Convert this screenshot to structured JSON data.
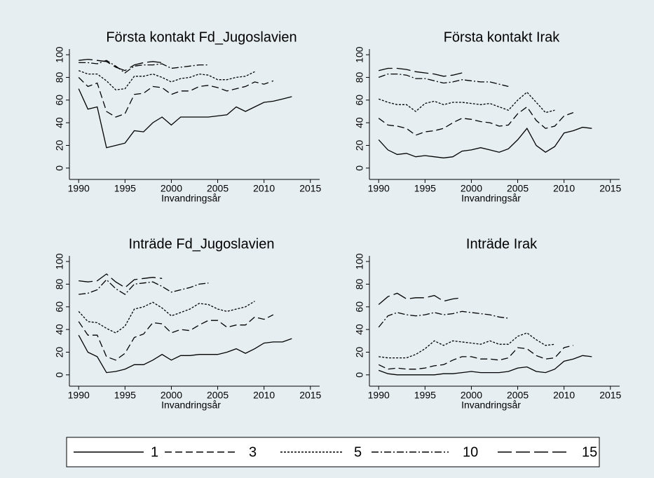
{
  "chart_data": [
    {
      "type": "line",
      "title": "Första kontakt Fd_Jugoslavien",
      "xlabel": "Invandringsår",
      "x": [
        1990,
        1991,
        1992,
        1993,
        1994,
        1995,
        1996,
        1997,
        1998,
        1999,
        2000,
        2001,
        2002,
        2003,
        2004,
        2005,
        2006,
        2007,
        2008,
        2009,
        2010,
        2011,
        2012,
        2013
      ],
      "xlim": [
        1989,
        2016
      ],
      "xticks": [
        1990,
        1995,
        2000,
        2005,
        2010,
        2015
      ],
      "ylim": [
        -10,
        105
      ],
      "yticks": [
        0,
        20,
        40,
        60,
        80,
        100
      ],
      "series": [
        {
          "name": "1",
          "color": "#000000",
          "values": [
            70,
            52,
            54,
            18,
            20,
            22,
            33,
            32,
            40,
            45,
            38,
            45,
            45,
            45,
            45,
            46,
            47,
            54,
            50,
            54,
            58,
            59,
            61,
            63
          ]
        },
        {
          "name": "3",
          "color": "#000000",
          "values": [
            80,
            72,
            75,
            50,
            45,
            48,
            65,
            66,
            72,
            71,
            65,
            68,
            68,
            72,
            73,
            71,
            68,
            70,
            72,
            76,
            74,
            77,
            null,
            null
          ]
        },
        {
          "name": "5",
          "color": "#000000",
          "values": [
            86,
            83,
            83,
            77,
            69,
            70,
            81,
            81,
            83,
            80,
            76,
            79,
            80,
            83,
            82,
            78,
            78,
            80,
            81,
            85,
            null,
            null,
            null,
            null
          ]
        },
        {
          "name": "10",
          "color": "#000000",
          "values": [
            93,
            93,
            92,
            95,
            90,
            84,
            90,
            91,
            91,
            92,
            88,
            89,
            90,
            91,
            91,
            null,
            null,
            null,
            null,
            null,
            null,
            null,
            null,
            null
          ]
        },
        {
          "name": "15",
          "color": "#000000",
          "values": [
            95,
            96,
            95,
            94,
            89,
            86,
            91,
            93,
            94,
            93,
            null,
            null,
            null,
            null,
            null,
            null,
            null,
            null,
            null,
            null,
            null,
            null,
            null,
            null
          ]
        }
      ]
    },
    {
      "type": "line",
      "title": "Första kontakt Irak",
      "xlabel": "Invandringsår",
      "x": [
        1990,
        1991,
        1992,
        1993,
        1994,
        1995,
        1996,
        1997,
        1998,
        1999,
        2000,
        2001,
        2002,
        2003,
        2004,
        2005,
        2006,
        2007,
        2008,
        2009,
        2010,
        2011,
        2012,
        2013
      ],
      "xlim": [
        1989,
        2016
      ],
      "xticks": [
        1990,
        1995,
        2000,
        2005,
        2010,
        2015
      ],
      "ylim": [
        -10,
        105
      ],
      "yticks": [
        0,
        20,
        40,
        60,
        80,
        100
      ],
      "series": [
        {
          "name": "1",
          "color": "#000000",
          "values": [
            25,
            16,
            12,
            13,
            10,
            11,
            10,
            9,
            10,
            15,
            16,
            18,
            16,
            14,
            17,
            25,
            35,
            20,
            14,
            19,
            31,
            33,
            36,
            35
          ]
        },
        {
          "name": "3",
          "color": "#000000",
          "values": [
            44,
            38,
            37,
            35,
            29,
            32,
            33,
            35,
            40,
            44,
            43,
            41,
            40,
            37,
            38,
            48,
            54,
            42,
            35,
            37,
            46,
            49,
            null,
            null
          ]
        },
        {
          "name": "5",
          "color": "#000000",
          "values": [
            61,
            58,
            56,
            56,
            50,
            57,
            59,
            56,
            58,
            58,
            57,
            56,
            57,
            54,
            51,
            60,
            67,
            58,
            49,
            51,
            null,
            null,
            null,
            null
          ]
        },
        {
          "name": "10",
          "color": "#000000",
          "values": [
            80,
            83,
            83,
            82,
            79,
            79,
            77,
            75,
            76,
            78,
            77,
            76,
            76,
            74,
            72,
            null,
            null,
            null,
            null,
            null,
            null,
            null,
            null,
            null
          ]
        },
        {
          "name": "15",
          "color": "#000000",
          "values": [
            86,
            88,
            88,
            87,
            85,
            84,
            83,
            81,
            82,
            84,
            null,
            null,
            null,
            null,
            null,
            null,
            null,
            null,
            null,
            null,
            null,
            null,
            null,
            null
          ]
        }
      ]
    },
    {
      "type": "line",
      "title": "Inträde Fd_Jugoslavien",
      "xlabel": "Invandringsår",
      "x": [
        1990,
        1991,
        1992,
        1993,
        1994,
        1995,
        1996,
        1997,
        1998,
        1999,
        2000,
        2001,
        2002,
        2003,
        2004,
        2005,
        2006,
        2007,
        2008,
        2009,
        2010,
        2011,
        2012,
        2013
      ],
      "xlim": [
        1989,
        2016
      ],
      "xticks": [
        1990,
        1995,
        2000,
        2005,
        2010,
        2015
      ],
      "ylim": [
        -10,
        105
      ],
      "yticks": [
        0,
        20,
        40,
        60,
        80,
        100
      ],
      "series": [
        {
          "name": "1",
          "color": "#000000",
          "values": [
            35,
            20,
            16,
            2,
            3,
            5,
            9,
            9,
            13,
            18,
            13,
            17,
            17,
            18,
            18,
            18,
            20,
            23,
            19,
            23,
            28,
            29,
            29,
            32
          ]
        },
        {
          "name": "3",
          "color": "#000000",
          "values": [
            47,
            35,
            35,
            16,
            13,
            19,
            33,
            36,
            46,
            45,
            37,
            40,
            39,
            44,
            48,
            48,
            42,
            44,
            44,
            51,
            49,
            53,
            null,
            null
          ]
        },
        {
          "name": "5",
          "color": "#000000",
          "values": [
            56,
            47,
            46,
            41,
            37,
            43,
            58,
            60,
            64,
            59,
            52,
            55,
            58,
            63,
            62,
            58,
            56,
            58,
            60,
            65,
            null,
            null,
            null,
            null
          ]
        },
        {
          "name": "10",
          "color": "#000000",
          "values": [
            71,
            72,
            75,
            84,
            76,
            71,
            80,
            81,
            82,
            78,
            73,
            75,
            77,
            80,
            81,
            null,
            null,
            null,
            null,
            null,
            null,
            null,
            null,
            null
          ]
        },
        {
          "name": "15",
          "color": "#000000",
          "values": [
            83,
            82,
            83,
            89,
            82,
            77,
            84,
            85,
            86,
            85,
            null,
            null,
            null,
            null,
            null,
            null,
            null,
            null,
            null,
            null,
            null,
            null,
            null,
            null
          ]
        }
      ]
    },
    {
      "type": "line",
      "title": "Inträde Irak",
      "xlabel": "Invandringsår",
      "x": [
        1990,
        1991,
        1992,
        1993,
        1994,
        1995,
        1996,
        1997,
        1998,
        1999,
        2000,
        2001,
        2002,
        2003,
        2004,
        2005,
        2006,
        2007,
        2008,
        2009,
        2010,
        2011,
        2012,
        2013
      ],
      "xlim": [
        1989,
        2016
      ],
      "xticks": [
        1990,
        1995,
        2000,
        2005,
        2010,
        2015
      ],
      "ylim": [
        -10,
        105
      ],
      "yticks": [
        0,
        20,
        40,
        60,
        80,
        100
      ],
      "series": [
        {
          "name": "1",
          "color": "#000000",
          "values": [
            4,
            1,
            0,
            0,
            0,
            0,
            0,
            1,
            1,
            2,
            3,
            2,
            2,
            2,
            3,
            6,
            7,
            3,
            2,
            5,
            12,
            14,
            17,
            16
          ]
        },
        {
          "name": "3",
          "color": "#000000",
          "values": [
            9,
            5,
            6,
            5,
            5,
            6,
            8,
            9,
            13,
            16,
            16,
            14,
            14,
            13,
            15,
            24,
            23,
            17,
            14,
            15,
            24,
            26,
            null,
            null
          ]
        },
        {
          "name": "5",
          "color": "#000000",
          "values": [
            16,
            15,
            15,
            15,
            18,
            23,
            30,
            26,
            30,
            29,
            28,
            27,
            30,
            27,
            27,
            34,
            37,
            31,
            26,
            27,
            null,
            null,
            null,
            null
          ]
        },
        {
          "name": "10",
          "color": "#000000",
          "values": [
            42,
            52,
            55,
            53,
            52,
            53,
            55,
            53,
            54,
            56,
            55,
            54,
            53,
            51,
            50,
            null,
            null,
            null,
            null,
            null,
            null,
            null,
            null,
            null
          ]
        },
        {
          "name": "15",
          "color": "#000000",
          "values": [
            62,
            69,
            72,
            67,
            68,
            68,
            70,
            65,
            67,
            68,
            null,
            null,
            null,
            null,
            null,
            null,
            null,
            null,
            null,
            null,
            null,
            null,
            null,
            null
          ]
        }
      ]
    }
  ]
}
